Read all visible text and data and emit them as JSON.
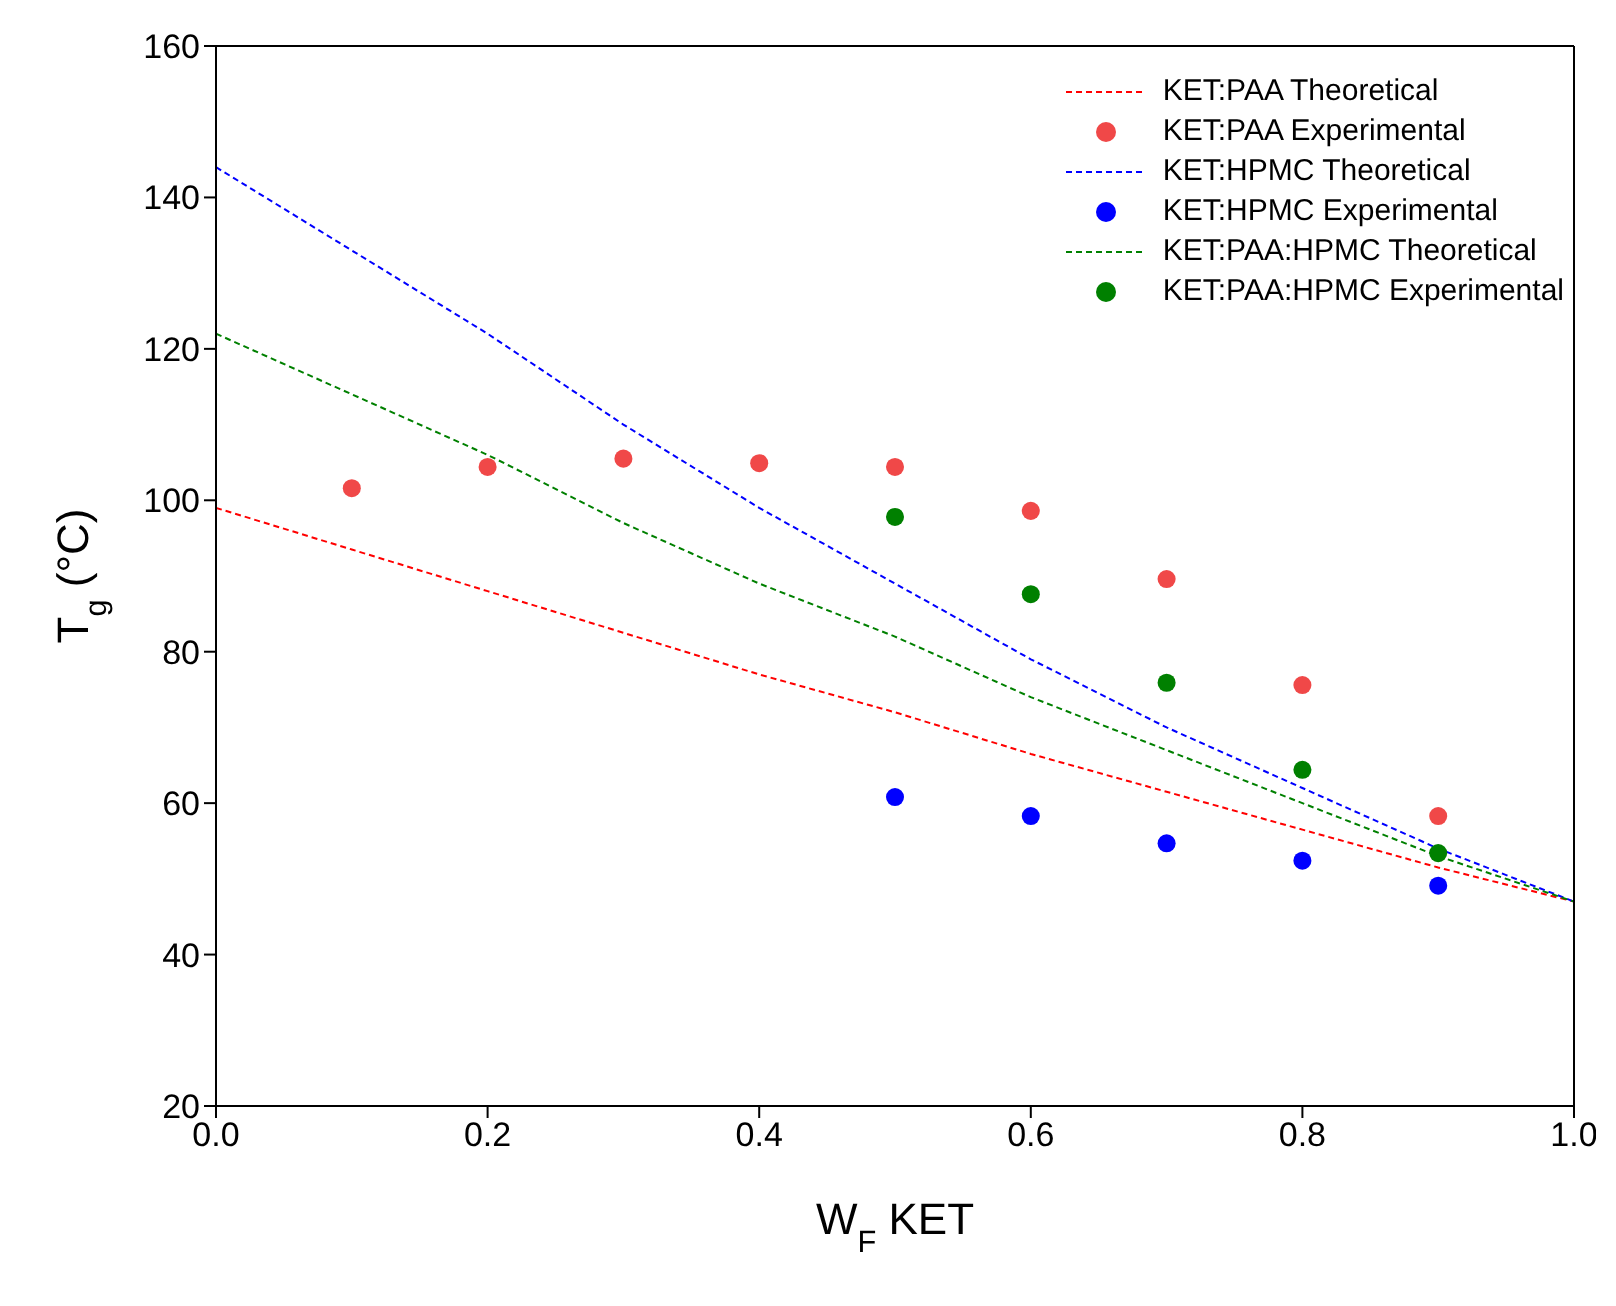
{
  "chart_data": {
    "type": "line",
    "xlabel": "W$_{F}$ KET",
    "ylabel": "T$_{g}$ (°C)",
    "xlim": [
      0,
      1
    ],
    "xticks": [
      {
        "value": 0,
        "label": "0.0"
      },
      {
        "value": 0.2,
        "label": "0.2"
      },
      {
        "value": 0.4,
        "label": "0.4"
      },
      {
        "value": 0.6,
        "label": "0.6"
      },
      {
        "value": 0.8,
        "label": "0.8"
      },
      {
        "value": 1,
        "label": "1.0"
      }
    ],
    "ylim": [
      20,
      160
    ],
    "yticks": [
      20,
      40,
      60,
      80,
      100,
      120,
      140,
      160
    ],
    "grid": false,
    "legend": "top right",
    "series": [
      {
        "name": "KET:PAA Theoretical",
        "color": "#ff0000",
        "line_style": "dashed",
        "marker": "none",
        "x": [
          0,
          0.1,
          0.2,
          0.3,
          0.4,
          0.5,
          0.6,
          0.7,
          0.8,
          0.9,
          1
        ],
        "values": [
          99,
          93.5,
          88,
          82.5,
          77,
          72,
          66.5,
          61.5,
          56.5,
          51.5,
          47
        ]
      },
      {
        "name": "KET:PAA Experimental",
        "type": "scatter",
        "color": "#f04848",
        "marker": "circle",
        "x": [
          0.1,
          0.2,
          0.3,
          0.4,
          0.5,
          0.6,
          0.7,
          0.8,
          0.9
        ],
        "values": [
          101.6,
          104.4,
          105.5,
          104.9,
          104.4,
          98.6,
          89.6,
          75.6,
          58.3
        ]
      },
      {
        "name": "KET:HPMC Theoretical",
        "color": "#0000ff",
        "line_style": "dashed",
        "marker": "none",
        "x": [
          0,
          0.1,
          0.2,
          0.3,
          0.4,
          0.5,
          0.6,
          0.7,
          0.8,
          0.9,
          1
        ],
        "values": [
          144,
          133,
          122,
          110,
          99,
          89,
          79,
          70,
          62,
          54,
          47
        ]
      },
      {
        "name": "KET:HPMC Experimental",
        "type": "scatter",
        "color": "#0000ff",
        "marker": "circle",
        "x": [
          0.5,
          0.6,
          0.7,
          0.8,
          0.9
        ],
        "values": [
          60.8,
          58.3,
          54.7,
          52.4,
          49.1
        ]
      },
      {
        "name": "KET:PAA:HPMC Theoretical",
        "color": "#008000",
        "line_style": "dashed",
        "marker": "none",
        "x": [
          0,
          0.1,
          0.2,
          0.3,
          0.4,
          0.5,
          0.6,
          0.7,
          0.8,
          0.9,
          1
        ],
        "values": [
          122,
          114,
          106,
          97,
          89,
          82,
          74,
          67,
          60,
          53,
          47
        ]
      },
      {
        "name": "KET:PAA:HPMC Experimental",
        "type": "scatter",
        "color": "#008000",
        "marker": "circle",
        "x": [
          0.5,
          0.6,
          0.7,
          0.8,
          0.9
        ],
        "values": [
          97.8,
          87.6,
          75.9,
          64.4,
          53.4
        ]
      }
    ]
  }
}
